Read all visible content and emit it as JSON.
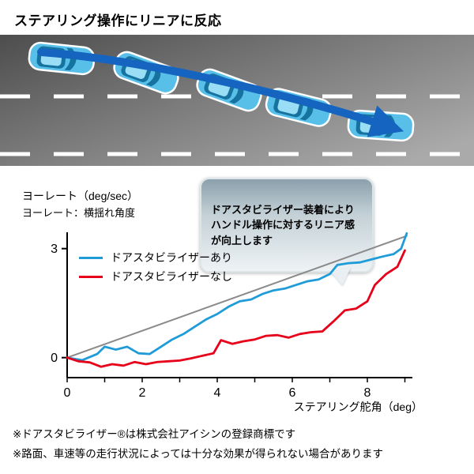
{
  "title": "ステアリング操作にリニアに反応",
  "callout": {
    "text": "ドアスタビライザー装着により\nハンドル操作に対するリニア感\nが向上します"
  },
  "axis_labels": {
    "y1": "ヨーレート（deg/sec）",
    "y2": "ヨーレート：横揺れ角度"
  },
  "footnotes": [
    "※ドアスタビライザー®は株式会社アイシンの登録商標です",
    "※路面、車速等の走行状況によっては十分な効果が得られない場合があります"
  ],
  "colors": {
    "with_stabilizer": "#1f9cd8",
    "without_stabilizer": "#e60019",
    "reference_line": "#8a8a8a",
    "arrow_blue": "#1565c0",
    "car_body_blue": "#58bfe9"
  },
  "chart_data": {
    "type": "line",
    "title": "",
    "xlabel": "ステアリング舵角（deg）",
    "ylabel": "ヨーレート（deg/sec）",
    "xlim": [
      0,
      9.2
    ],
    "ylim": [
      -0.55,
      3.45
    ],
    "xticks": [
      0,
      2,
      4,
      6,
      8
    ],
    "yticks": [
      0,
      3
    ],
    "grid": false,
    "legend_position": "upper-left-inside",
    "series": [
      {
        "name": "reference",
        "color": "#8a8a8a",
        "width": 2,
        "x": [
          0,
          9.05
        ],
        "y": [
          0,
          3.35
        ]
      },
      {
        "name": "ドアスタビライザーあり",
        "color": "#1f9cd8",
        "width": 2.8,
        "x": [
          0,
          0.4,
          0.8,
          1.0,
          1.3,
          1.6,
          1.9,
          2.2,
          2.5,
          2.8,
          3.1,
          3.4,
          3.7,
          4.0,
          4.3,
          4.6,
          4.9,
          5.2,
          5.5,
          5.8,
          6.1,
          6.4,
          6.7,
          7.0,
          7.2,
          7.5,
          7.8,
          8.1,
          8.4,
          8.7,
          8.9,
          9.05
        ],
        "y": [
          0,
          -0.07,
          0.1,
          0.3,
          0.22,
          0.3,
          0.12,
          0.1,
          0.3,
          0.5,
          0.65,
          0.85,
          1.05,
          1.2,
          1.4,
          1.55,
          1.6,
          1.75,
          1.85,
          1.9,
          2.0,
          2.1,
          2.15,
          2.3,
          2.55,
          2.6,
          2.62,
          2.7,
          2.78,
          2.85,
          3.0,
          3.42
        ]
      },
      {
        "name": "ドアスタビライザーなし",
        "color": "#e60019",
        "width": 2.8,
        "x": [
          0,
          0.3,
          0.6,
          0.9,
          1.2,
          1.5,
          1.8,
          2.1,
          2.4,
          2.7,
          3.0,
          3.3,
          3.6,
          3.9,
          4.1,
          4.4,
          4.7,
          5.0,
          5.3,
          5.6,
          5.9,
          6.2,
          6.5,
          6.8,
          7.1,
          7.4,
          7.7,
          8.0,
          8.2,
          8.5,
          8.8,
          9.0
        ],
        "y": [
          0,
          -0.1,
          -0.13,
          -0.25,
          -0.18,
          -0.22,
          -0.12,
          -0.18,
          -0.12,
          -0.1,
          -0.08,
          -0.02,
          0.05,
          0.12,
          0.48,
          0.38,
          0.45,
          0.5,
          0.6,
          0.62,
          0.55,
          0.65,
          0.7,
          0.72,
          1.0,
          1.3,
          1.35,
          1.55,
          2.0,
          2.3,
          2.5,
          2.95
        ]
      }
    ]
  }
}
